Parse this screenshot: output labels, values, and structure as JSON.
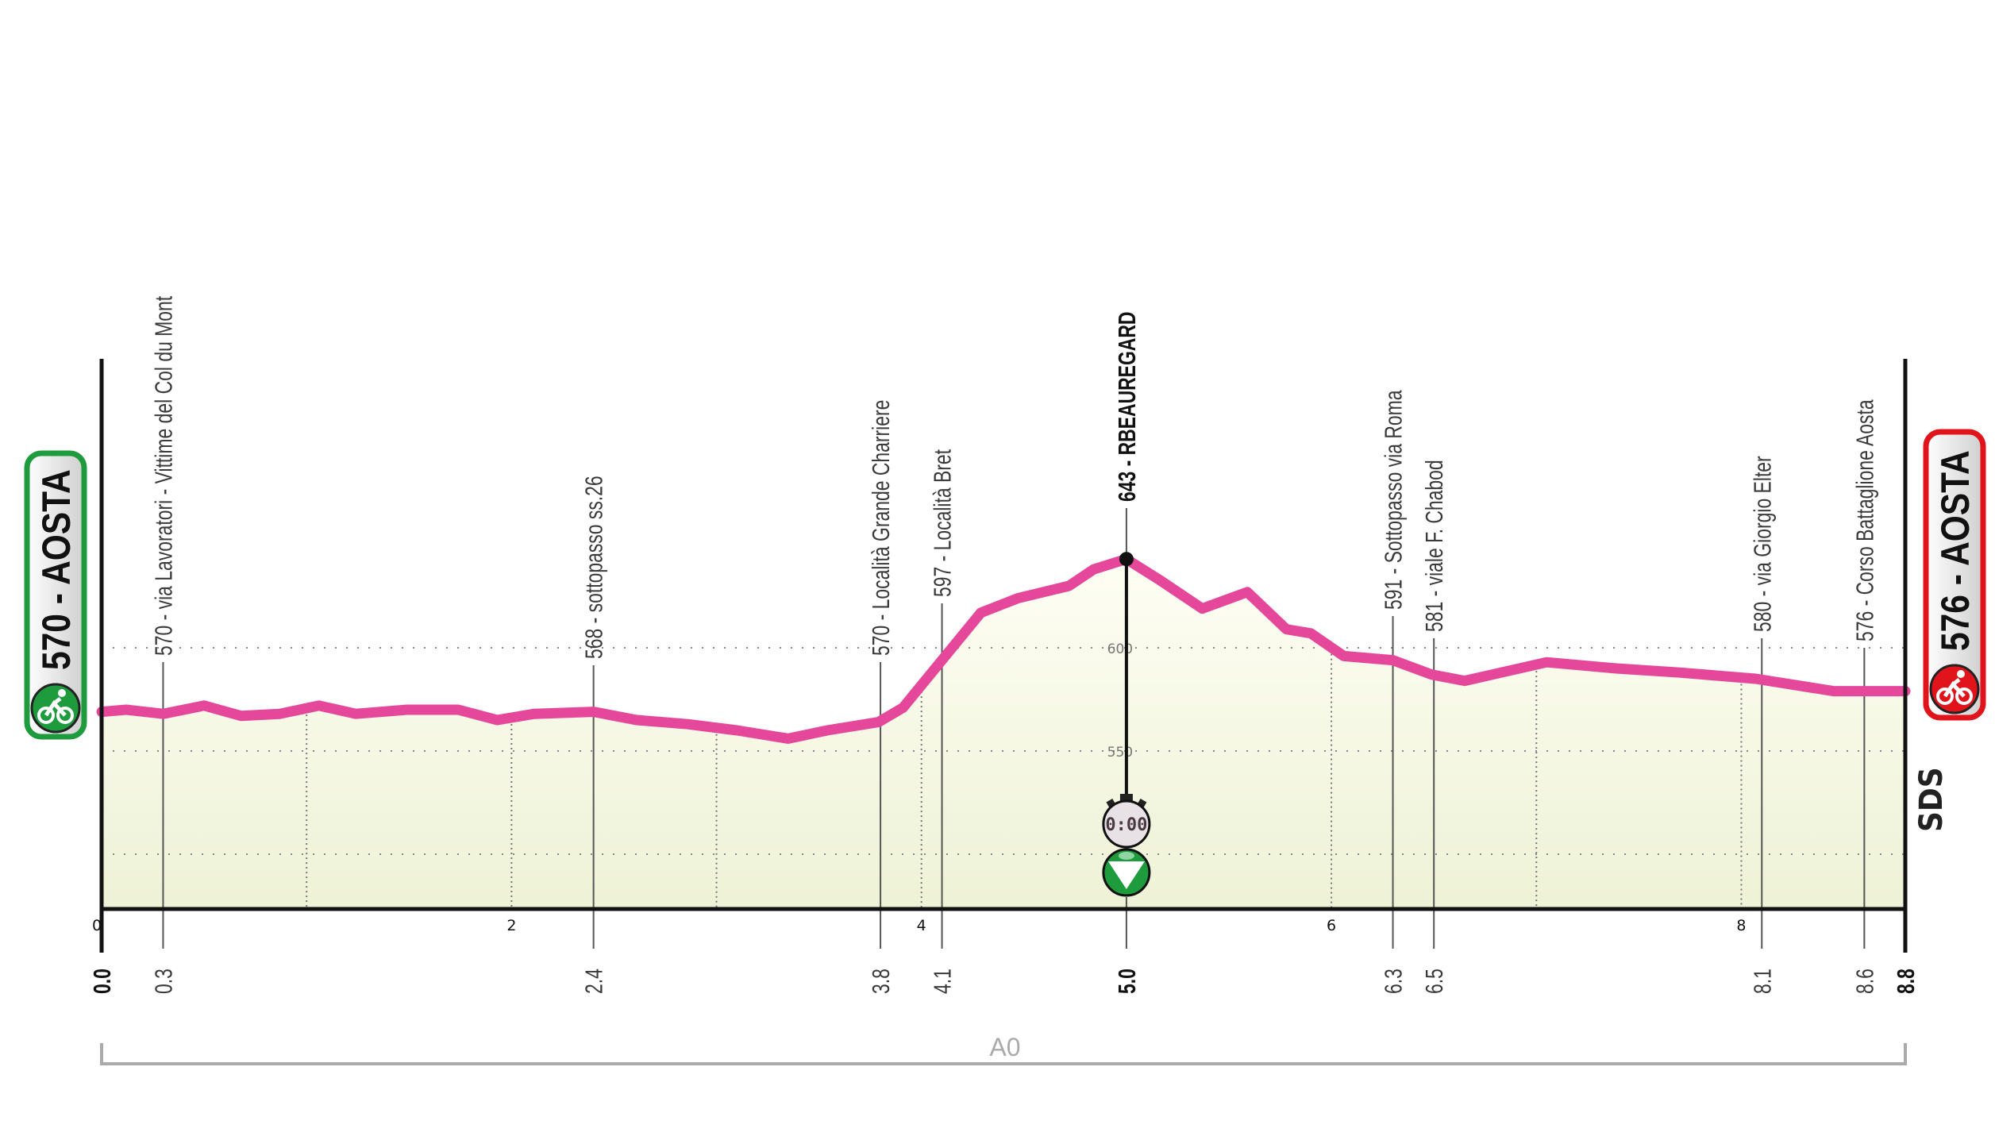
{
  "chart_data": {
    "type": "area",
    "title": "",
    "xlabel": "",
    "ylabel": "",
    "xlim": [
      0,
      8.8
    ],
    "ylim": [
      475,
      660
    ],
    "grid": true,
    "line_color": "#e5489a",
    "fill_color": "#fbfbe8",
    "profile": {
      "x": [
        0,
        0.12,
        0.3,
        0.5,
        0.68,
        0.87,
        1.06,
        1.24,
        1.49,
        1.74,
        1.93,
        2.11,
        2.4,
        2.61,
        2.86,
        3.1,
        3.35,
        3.54,
        3.79,
        3.91,
        4.1,
        4.29,
        4.47,
        4.72,
        4.84,
        5.0,
        5.16,
        5.37,
        5.59,
        5.78,
        5.9,
        6.06,
        6.3,
        6.49,
        6.65,
        7.05,
        7.39,
        7.7,
        8.07,
        8.45,
        8.8
      ],
      "y": [
        569,
        570,
        568,
        572,
        567,
        568,
        572,
        568,
        570,
        570,
        565,
        568,
        569,
        565,
        563,
        560,
        556,
        560,
        564,
        571,
        594,
        617,
        624,
        630,
        638,
        643,
        633,
        619,
        627,
        609,
        607,
        596,
        594,
        587,
        584,
        593,
        590,
        588,
        585,
        579,
        579
      ]
    },
    "km_axis_ticks": [
      {
        "km": 0,
        "label": "0"
      },
      {
        "km": 2,
        "label": "2"
      },
      {
        "km": 4,
        "label": "4"
      },
      {
        "km": 6,
        "label": "6"
      },
      {
        "km": 8,
        "label": "8"
      }
    ],
    "km_gridlines": [
      1,
      2,
      3,
      4,
      6,
      7,
      8
    ],
    "elevation_gridlines": [
      {
        "value": 500,
        "label": ""
      },
      {
        "value": 550,
        "label": "550"
      },
      {
        "value": 600,
        "label": "600"
      }
    ],
    "waypoints": [
      {
        "km": 0.3,
        "km_label": "0.3",
        "text": "570 - via Lavoratori - Vittime del Col du Mont",
        "bold": false
      },
      {
        "km": 2.4,
        "km_label": "2.4",
        "text": "568 - sottopasso ss.26",
        "bold": false
      },
      {
        "km": 3.8,
        "km_label": "3.8",
        "text": "570 - Località  Grande Charriere",
        "bold": false
      },
      {
        "km": 4.1,
        "km_label": "4.1",
        "text": "597 - Località Bret",
        "bold": false
      },
      {
        "km": 5.0,
        "km_label": "5.0",
        "text": "643 - RBEAUREGARD",
        "bold": true
      },
      {
        "km": 6.3,
        "km_label": "6.3",
        "text": "591 - Sottopasso via Roma",
        "bold": false
      },
      {
        "km": 6.5,
        "km_label": "6.5",
        "text": "581 - viale F. Chabod",
        "bold": false
      },
      {
        "km": 8.1,
        "km_label": "8.1",
        "text": "580 - via Giorgio Elter",
        "bold": false
      },
      {
        "km": 8.6,
        "km_label": "8.6",
        "text": "576 - Corso Battaglione Aosta",
        "bold": false
      }
    ],
    "start": {
      "km": 0,
      "km_label": "0.0",
      "text": "570 - AOSTA",
      "color": "#1e9b3c",
      "icon": "cyclist-icon"
    },
    "finish": {
      "km": 8.8,
      "km_label": "8.8",
      "text": "576 - AOSTA",
      "color": "#e2141b",
      "icon": "cyclist-icon"
    },
    "intermediate_time_check": {
      "km": 5.0,
      "elevation": 643,
      "stopwatch_text": "0:00",
      "marker_color": "#1e9b3c",
      "icons": [
        "stopwatch-icon",
        "green-triangle-marker-icon"
      ]
    },
    "sector": {
      "label": "A0",
      "from_km": 0,
      "to_km": 8.8,
      "color": "#aaaaaa"
    },
    "logo": "SDS"
  }
}
